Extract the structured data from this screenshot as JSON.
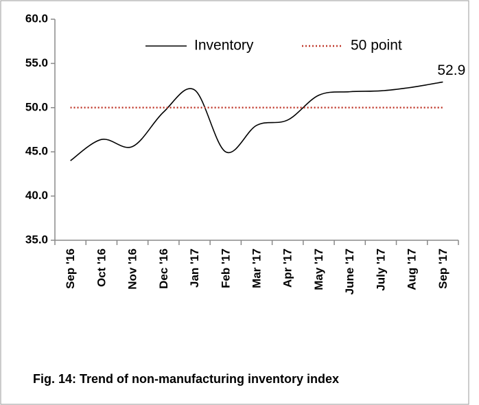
{
  "chart_data": {
    "type": "line",
    "title": "Fig. 14: Trend of non-manufacturing inventory index",
    "categories": [
      "Sep '16",
      "Oct '16",
      "Nov '16",
      "Dec '16",
      "Jan '17",
      "Feb '17",
      "Mar '17",
      "Apr '17",
      "May '17",
      "June '17",
      "July '17",
      "Aug '17",
      "Sep '17"
    ],
    "series": [
      {
        "name": "Inventory",
        "color": "#000000",
        "values": [
          44.0,
          46.4,
          45.6,
          49.5,
          52.0,
          45.0,
          48.0,
          48.6,
          51.4,
          51.8,
          51.9,
          52.3,
          52.9
        ]
      },
      {
        "name": "50 point",
        "color": "#c0392b",
        "values": [
          50,
          50,
          50,
          50,
          50,
          50,
          50,
          50,
          50,
          50,
          50,
          50,
          50
        ]
      }
    ],
    "ylim": [
      35,
      60
    ],
    "yticks": [
      {
        "value": 35,
        "label": "35.0"
      },
      {
        "value": 40,
        "label": "40.0"
      },
      {
        "value": 45,
        "label": "45.0"
      },
      {
        "value": 50,
        "label": "50.0"
      },
      {
        "value": 55,
        "label": "55.0"
      },
      {
        "value": 60,
        "label": "60.0"
      }
    ],
    "legend": "top"
  }
}
